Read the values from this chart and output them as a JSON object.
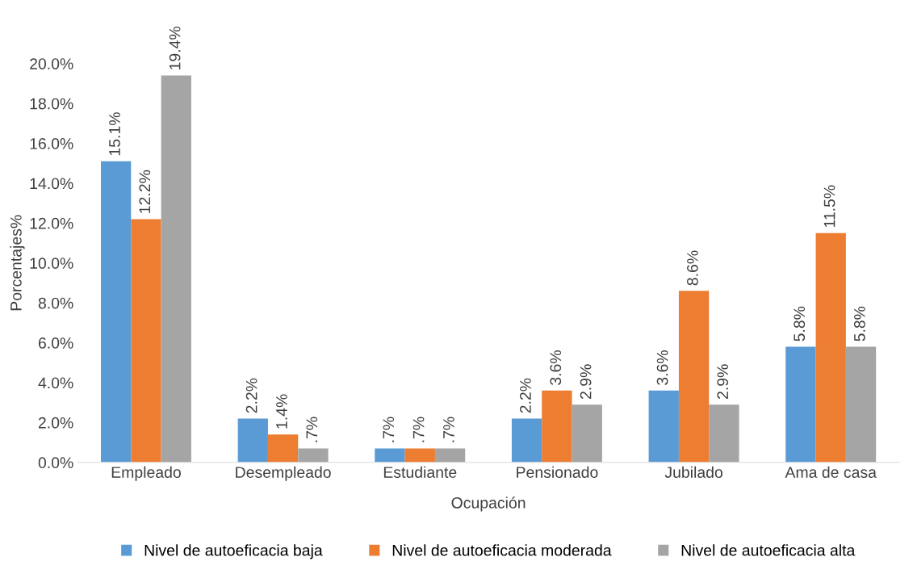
{
  "chart_data": {
    "type": "bar",
    "categories": [
      "Empleado",
      "Desempleado",
      "Estudiante",
      "Pensionado",
      "Jubilado",
      "Ama de casa"
    ],
    "series": [
      {
        "name": "Nivel de autoeficacia baja",
        "color": "#5b9bd5",
        "values": [
          15.1,
          2.2,
          0.7,
          2.2,
          3.6,
          5.8
        ],
        "value_labels": [
          "15.1%",
          "2.2%",
          ".7%",
          "2.2%",
          "3.6%",
          "5.8%"
        ]
      },
      {
        "name": "Nivel de autoeficacia moderada",
        "color": "#ed7d31",
        "values": [
          12.2,
          1.4,
          0.7,
          3.6,
          8.6,
          11.5
        ],
        "value_labels": [
          "12.2%",
          "1.4%",
          ".7%",
          "3.6%",
          "8.6%",
          "11.5%"
        ]
      },
      {
        "name": "Nivel de autoeficacia alta",
        "color": "#a5a5a5",
        "values": [
          19.4,
          0.7,
          0.7,
          2.9,
          2.9,
          5.8
        ],
        "value_labels": [
          "19.4%",
          ".7%",
          ".7%",
          "2.9%",
          "2.9%",
          "5.8%"
        ]
      }
    ],
    "xlabel": "Ocupación",
    "ylabel": "Porcentajes%",
    "ylim": [
      0,
      20
    ],
    "yticks": [
      {
        "value": 0,
        "label": "0.0%"
      },
      {
        "value": 2,
        "label": "2.0%"
      },
      {
        "value": 4,
        "label": "4.0%"
      },
      {
        "value": 6,
        "label": "6.0%"
      },
      {
        "value": 8,
        "label": "8.0%"
      },
      {
        "value": 10,
        "label": "10.0%"
      },
      {
        "value": 12,
        "label": "12.0%"
      },
      {
        "value": 14,
        "label": "14.0%"
      },
      {
        "value": 16,
        "label": "16.0%"
      },
      {
        "value": 18,
        "label": "18.0%"
      },
      {
        "value": 20,
        "label": "20.0%"
      }
    ],
    "grid": false,
    "legend": "bottom"
  }
}
